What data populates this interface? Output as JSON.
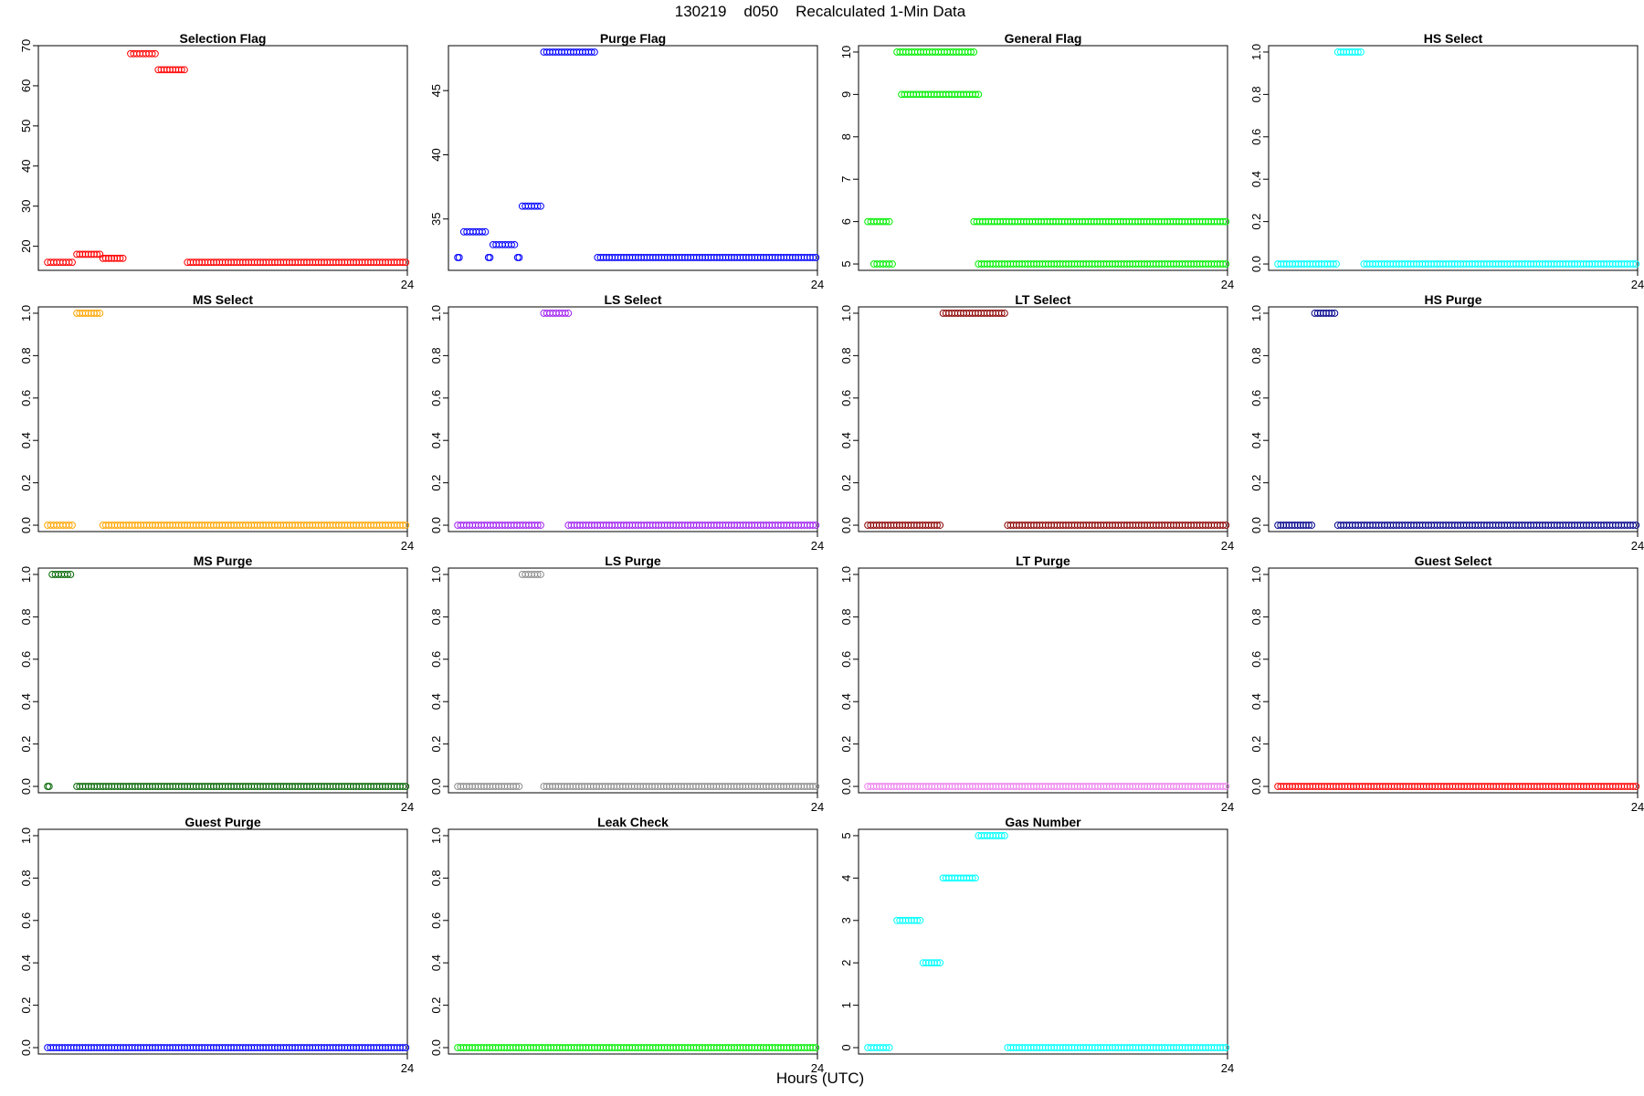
{
  "figure": {
    "title": "130219    d050    Recalculated 1-Min Data",
    "xlabel": "Hours (UTC)"
  },
  "chart_data": [
    {
      "type": "scatter",
      "title": "Selection Flag",
      "color": "#ff0000",
      "ylim": [
        14,
        70
      ],
      "yticks": [
        20,
        30,
        40,
        50,
        60,
        70
      ],
      "xtick_label": "24",
      "segments": [
        {
          "start": 0.6,
          "end": 2.2,
          "value": 16
        },
        {
          "start": 2.5,
          "end": 4.0,
          "value": 18
        },
        {
          "start": 4.2,
          "end": 5.5,
          "value": 17
        },
        {
          "start": 6.0,
          "end": 7.6,
          "value": 68
        },
        {
          "start": 7.8,
          "end": 9.5,
          "value": 64
        },
        {
          "start": 9.7,
          "end": 23.9,
          "value": 16
        }
      ]
    },
    {
      "type": "scatter",
      "title": "Purge Flag",
      "color": "#0000ff",
      "ylim": [
        31,
        48.5
      ],
      "yticks": [
        35,
        40,
        45
      ],
      "xtick_label": "24",
      "segments": [
        {
          "start": 0.6,
          "end": 0.7,
          "value": 32
        },
        {
          "start": 1.0,
          "end": 2.4,
          "value": 34
        },
        {
          "start": 2.6,
          "end": 2.7,
          "value": 32
        },
        {
          "start": 2.9,
          "end": 4.3,
          "value": 33
        },
        {
          "start": 4.5,
          "end": 4.6,
          "value": 32
        },
        {
          "start": 4.8,
          "end": 6.0,
          "value": 36
        },
        {
          "start": 6.2,
          "end": 9.5,
          "value": 48
        },
        {
          "start": 9.7,
          "end": 23.9,
          "value": 32
        }
      ]
    },
    {
      "type": "scatter",
      "title": "General Flag",
      "color": "#00ee00",
      "ylim": [
        4.85,
        10.15
      ],
      "yticks": [
        5,
        6,
        7,
        8,
        9,
        10
      ],
      "xtick_label": "24",
      "segments": [
        {
          "start": 0.6,
          "end": 2.0,
          "value": 6
        },
        {
          "start": 1.0,
          "end": 2.2,
          "value": 5
        },
        {
          "start": 2.5,
          "end": 7.5,
          "value": 10
        },
        {
          "start": 2.8,
          "end": 7.8,
          "value": 9
        },
        {
          "start": 7.5,
          "end": 23.9,
          "value": 6
        },
        {
          "start": 7.8,
          "end": 23.9,
          "value": 5
        }
      ]
    },
    {
      "type": "scatter",
      "title": "HS Select",
      "color": "#00ffff",
      "ylim": [
        -0.03,
        1.03
      ],
      "yticks": [
        0.0,
        0.2,
        0.4,
        0.6,
        0.8,
        1.0
      ],
      "xtick_label": "24",
      "segments": [
        {
          "start": 0.6,
          "end": 4.4,
          "value": 0
        },
        {
          "start": 4.5,
          "end": 6.0,
          "value": 1
        },
        {
          "start": 6.2,
          "end": 23.9,
          "value": 0
        }
      ]
    },
    {
      "type": "scatter",
      "title": "MS Select",
      "color": "#ffa500",
      "ylim": [
        -0.03,
        1.03
      ],
      "yticks": [
        0.0,
        0.2,
        0.4,
        0.6,
        0.8,
        1.0
      ],
      "xtick_label": "24",
      "segments": [
        {
          "start": 0.6,
          "end": 2.2,
          "value": 0
        },
        {
          "start": 2.5,
          "end": 4.0,
          "value": 1
        },
        {
          "start": 4.2,
          "end": 23.9,
          "value": 0
        }
      ]
    },
    {
      "type": "scatter",
      "title": "LS Select",
      "color": "#a020f0",
      "ylim": [
        -0.03,
        1.03
      ],
      "yticks": [
        0.0,
        0.2,
        0.4,
        0.6,
        0.8,
        1.0
      ],
      "xtick_label": "24",
      "segments": [
        {
          "start": 0.6,
          "end": 6.0,
          "value": 0
        },
        {
          "start": 6.2,
          "end": 7.8,
          "value": 1
        },
        {
          "start": 7.8,
          "end": 23.9,
          "value": 0
        }
      ]
    },
    {
      "type": "scatter",
      "title": "LT Select",
      "color": "#8b0000",
      "ylim": [
        -0.03,
        1.03
      ],
      "yticks": [
        0.0,
        0.2,
        0.4,
        0.6,
        0.8,
        1.0
      ],
      "xtick_label": "24",
      "segments": [
        {
          "start": 0.6,
          "end": 5.3,
          "value": 0
        },
        {
          "start": 5.5,
          "end": 9.5,
          "value": 1
        },
        {
          "start": 9.7,
          "end": 23.9,
          "value": 0
        }
      ]
    },
    {
      "type": "scatter",
      "title": "HS Purge",
      "color": "#00008b",
      "ylim": [
        -0.03,
        1.03
      ],
      "yticks": [
        0.0,
        0.2,
        0.4,
        0.6,
        0.8,
        1.0
      ],
      "xtick_label": "24",
      "segments": [
        {
          "start": 0.6,
          "end": 2.8,
          "value": 0
        },
        {
          "start": 3.0,
          "end": 4.3,
          "value": 1
        },
        {
          "start": 4.5,
          "end": 23.9,
          "value": 0
        }
      ]
    },
    {
      "type": "scatter",
      "title": "MS Purge",
      "color": "#006400",
      "ylim": [
        -0.03,
        1.03
      ],
      "yticks": [
        0.0,
        0.2,
        0.4,
        0.6,
        0.8,
        1.0
      ],
      "xtick_label": "24",
      "segments": [
        {
          "start": 0.6,
          "end": 0.7,
          "value": 0
        },
        {
          "start": 0.9,
          "end": 2.1,
          "value": 1
        },
        {
          "start": 2.5,
          "end": 23.9,
          "value": 0
        }
      ]
    },
    {
      "type": "scatter",
      "title": "LS Purge",
      "color": "#8c8c8c",
      "ylim": [
        -0.03,
        1.03
      ],
      "yticks": [
        0.0,
        0.2,
        0.4,
        0.6,
        0.8,
        1.0
      ],
      "xtick_label": "24",
      "segments": [
        {
          "start": 0.6,
          "end": 4.6,
          "value": 0
        },
        {
          "start": 4.8,
          "end": 6.0,
          "value": 1
        },
        {
          "start": 6.2,
          "end": 23.9,
          "value": 0
        }
      ]
    },
    {
      "type": "scatter",
      "title": "LT Purge",
      "color": "#ee82ee",
      "ylim": [
        -0.03,
        1.03
      ],
      "yticks": [
        0.0,
        0.2,
        0.4,
        0.6,
        0.8,
        1.0
      ],
      "xtick_label": "24",
      "segments": [
        {
          "start": 0.6,
          "end": 23.9,
          "value": 0
        }
      ]
    },
    {
      "type": "scatter",
      "title": "Guest Select",
      "color": "#ff0000",
      "ylim": [
        -0.03,
        1.03
      ],
      "yticks": [
        0.0,
        0.2,
        0.4,
        0.6,
        0.8,
        1.0
      ],
      "xtick_label": "24",
      "segments": [
        {
          "start": 0.6,
          "end": 23.9,
          "value": 0
        }
      ]
    },
    {
      "type": "scatter",
      "title": "Guest Purge",
      "color": "#0000ff",
      "ylim": [
        -0.03,
        1.03
      ],
      "yticks": [
        0.0,
        0.2,
        0.4,
        0.6,
        0.8,
        1.0
      ],
      "xtick_label": "24",
      "segments": [
        {
          "start": 0.6,
          "end": 23.9,
          "value": 0
        }
      ]
    },
    {
      "type": "scatter",
      "title": "Leak Check",
      "color": "#00ee00",
      "ylim": [
        -0.03,
        1.03
      ],
      "yticks": [
        0.0,
        0.2,
        0.4,
        0.6,
        0.8,
        1.0
      ],
      "xtick_label": "24",
      "segments": [
        {
          "start": 0.6,
          "end": 23.9,
          "value": 0
        }
      ]
    },
    {
      "type": "scatter",
      "title": "Gas Number",
      "color": "#00ffff",
      "ylim": [
        -0.15,
        5.15
      ],
      "yticks": [
        0,
        1,
        2,
        3,
        4,
        5
      ],
      "xtick_label": "24",
      "segments": [
        {
          "start": 0.6,
          "end": 2.0,
          "value": 0
        },
        {
          "start": 2.5,
          "end": 4.0,
          "value": 3
        },
        {
          "start": 4.2,
          "end": 5.3,
          "value": 2
        },
        {
          "start": 5.5,
          "end": 7.6,
          "value": 4
        },
        {
          "start": 7.8,
          "end": 9.5,
          "value": 5
        },
        {
          "start": 9.7,
          "end": 23.9,
          "value": 0
        }
      ]
    }
  ]
}
